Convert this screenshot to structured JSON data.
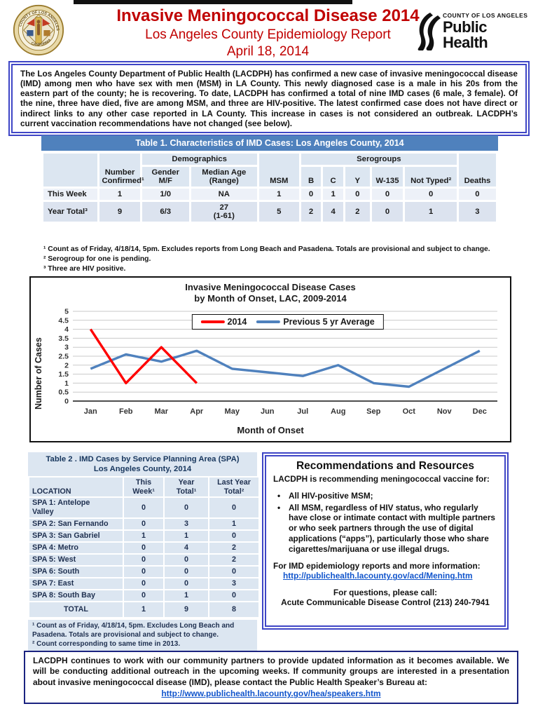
{
  "header": {
    "title": "Invasive Meningococcal Disease 2014",
    "subtitle": "Los Angeles County Epidemiology Report",
    "date": "April 18, 2014"
  },
  "seal": {
    "top_text": "COUNTY OF LOS ANGELES",
    "bottom_text": "CALIFORNIA"
  },
  "ph_logo": {
    "line1": "COUNTY OF LOS ANGELES",
    "line2": "Public Health"
  },
  "intro": {
    "text": "The Los Angeles County Department of Public Health (LACDPH) has confirmed a new case of invasive meningococcal disease (IMD) among men who have sex with men (MSM) in LA County. This newly diagnosed case is a male in his 20s from the eastern part of the county; he is recovering. To date, LACDPH has confirmed a total of nine IMD cases (6 male, 3 female). Of the nine, three have died, five are among MSM, and three are HIV-positive. The latest confirmed case does not have direct or indirect links to any other case reported in LA County. This increase in cases is not considered an outbreak. LACDPH’s current vaccination recommendations have not changed (see below)."
  },
  "table1": {
    "title": "Table 1. Characteristics of IMD Cases: Los Angeles County, 2014",
    "col_number_confirmed": "Number\nConfirmed¹",
    "group_demographics": "Demographics",
    "col_gender": "Gender\nM/F",
    "col_median_age": "Median Age\n(Range)",
    "col_msm": "MSM",
    "group_serogroups": "Serogroups",
    "col_b": "B",
    "col_c": "C",
    "col_y": "Y",
    "col_w135": "W-135",
    "col_not_typed": "Not Typed²",
    "col_deaths": "Deaths",
    "rows": [
      {
        "label": "This Week",
        "number": "1",
        "gender": "1/0",
        "median_age": "NA",
        "msm": "1",
        "b": "0",
        "c": "1",
        "y": "0",
        "w135": "0",
        "not_typed": "0",
        "deaths": "0"
      },
      {
        "label": "Year Total³",
        "number": "9",
        "gender": "6/3",
        "median_age": "27\n(1-61)",
        "msm": "5",
        "b": "2",
        "c": "4",
        "y": "2",
        "w135": "0",
        "not_typed": "1",
        "deaths": "3"
      }
    ],
    "footnotes": [
      "¹ Count as of Friday, 4/18/14, 5pm. Excludes reports from Long Beach and Pasadena. Totals are provisional and subject to change.",
      "² Serogroup for one is pending.",
      "³ Three are HIV positive."
    ]
  },
  "chart_data": {
    "type": "line",
    "title": "Invasive Meningococcal Disease Cases\nby Month of Onset, LAC, 2009-2014",
    "xlabel": "Month of Onset",
    "ylabel": "Number of Cases",
    "ylim": [
      0,
      5
    ],
    "ytick_step": 0.5,
    "grid": true,
    "legend_position": "top-center",
    "categories": [
      "Jan",
      "Feb",
      "Mar",
      "Apr",
      "May",
      "Jun",
      "Jul",
      "Aug",
      "Sep",
      "Oct",
      "Nov",
      "Dec"
    ],
    "series": [
      {
        "name": "2014",
        "color": "#FF0000",
        "values": [
          4,
          1,
          3,
          1,
          null,
          null,
          null,
          null,
          null,
          null,
          null,
          null
        ]
      },
      {
        "name": "Previous 5 yr Average",
        "color": "#4F81BD",
        "values": [
          1.8,
          2.6,
          2.2,
          2.8,
          1.8,
          1.6,
          1.4,
          2.0,
          1.0,
          0.8,
          1.8,
          2.8
        ]
      }
    ]
  },
  "table2": {
    "title": "Table 2 . IMD Cases by Service Planning Area (SPA)\nLos Angeles County, 2014",
    "columns": [
      "LOCATION",
      "This\nWeek¹",
      "Year\nTotal¹",
      "Last Year\nTotal²"
    ],
    "rows": [
      [
        "SPA 1: Antelope\nValley",
        "0",
        "0",
        "0"
      ],
      [
        "SPA 2: San Fernando",
        "0",
        "3",
        "1"
      ],
      [
        "SPA 3: San Gabriel",
        "1",
        "1",
        "0"
      ],
      [
        "SPA 4: Metro",
        "0",
        "4",
        "2"
      ],
      [
        "SPA 5: West",
        "0",
        "0",
        "2"
      ],
      [
        "SPA 6: South",
        "0",
        "0",
        "0"
      ],
      [
        "SPA 7: East",
        "0",
        "0",
        "3"
      ],
      [
        "SPA 8: South Bay",
        "0",
        "1",
        "0"
      ]
    ],
    "total_row": {
      "label": "TOTAL",
      "this_week": "1",
      "year_total": "9",
      "last_year": "8"
    },
    "footnotes": [
      "¹ Count as of Friday, 4/18/14, 5pm. Excludes Long Beach and Pasadena. Totals are provisional and subject to change.",
      "² Count corresponding to same time in 2013."
    ]
  },
  "recommendations": {
    "title": "Recommendations and Resources",
    "intro": "LACDPH is recommending meningococcal vaccine for:",
    "bullets": [
      "All HIV-positive MSM;",
      "All MSM, regardless of HIV status, who regularly have close or intimate contact with multiple partners or who seek partners through the use of digital applications (“apps”), particularly those who share cigarettes/marijuana or use illegal drugs."
    ],
    "info_label": "For IMD epidemiology reports and more information:",
    "info_link": "http://publichealth.lacounty.gov/acd/Mening.htm",
    "questions_label": "For questions, please call:",
    "questions_contact": "Acute Communicable Disease Control (213) 240-7941"
  },
  "bottom": {
    "text": "LACDPH continues to work with our community partners to provide updated information as it becomes available. We will be conducting additional outreach in the upcoming weeks. If community groups are interested in a presentation about invasive meningococcal disease (IMD), please contact the Public Health Speaker’s Bureau at:",
    "link": "http://www.publichealth.lacounty.gov/hea/speakers.htm"
  }
}
